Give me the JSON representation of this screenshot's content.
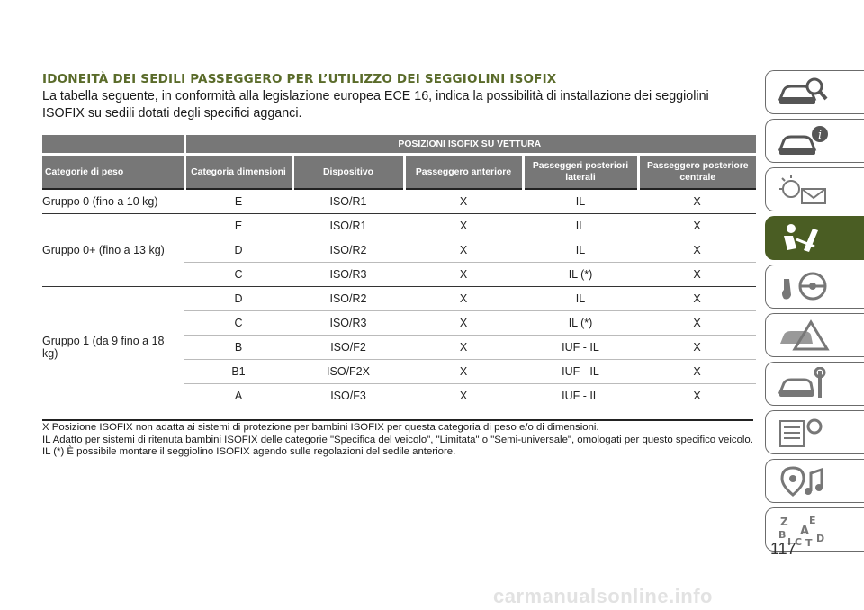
{
  "heading": "IDONEITÀ DEI SEDILI PASSEGGERO PER L’UTILIZZO DEI SEGGIOLINI ISOFIX",
  "intro": "La tabella seguente, in conformità alla legislazione europea ECE 16, indica la possibilità di installazione dei seggiolini ISOFIX su sedili dotati degli specifici agganci.",
  "table": {
    "group_header": "POSIZIONI ISOFIX SU VETTURA",
    "columns": [
      "Categorie di peso",
      "Categoria dimensioni",
      "Dispositivo",
      "Passeggero anteriore",
      "Passeggeri posteriori laterali",
      "Passeggero posteriore centrale"
    ],
    "groups": [
      {
        "label": "Gruppo 0 (fino a 10 kg)",
        "rows": [
          [
            "E",
            "ISO/R1",
            "X",
            "IL",
            "X"
          ]
        ]
      },
      {
        "label": "Gruppo 0+ (fino a 13 kg)",
        "rows": [
          [
            "E",
            "ISO/R1",
            "X",
            "IL",
            "X"
          ],
          [
            "D",
            "ISO/R2",
            "X",
            "IL",
            "X"
          ],
          [
            "C",
            "ISO/R3",
            "X",
            "IL (*)",
            "X"
          ]
        ]
      },
      {
        "label": "Gruppo 1 (da 9 fino a 18 kg)",
        "rows": [
          [
            "D",
            "ISO/R2",
            "X",
            "IL",
            "X"
          ],
          [
            "C",
            "ISO/R3",
            "X",
            "IL (*)",
            "X"
          ],
          [
            "B",
            "ISO/F2",
            "X",
            "IUF - IL",
            "X"
          ],
          [
            "B1",
            "ISO/F2X",
            "X",
            "IUF - IL",
            "X"
          ],
          [
            "A",
            "ISO/F3",
            "X",
            "IUF - IL",
            "X"
          ]
        ]
      }
    ]
  },
  "notes": [
    "X Posizione ISOFIX non adatta ai sistemi di protezione per bambini ISOFIX per questa categoria di peso e/o di dimensioni.",
    "IL Adatto per sistemi di ritenuta bambini ISOFIX delle categorie \"Specifica del veicolo\", \"Limitata\" o \"Semi-universale\", omologati per questo specifico veicolo.",
    "IL (*) È possibile montare il seggiolino ISOFIX agendo sulle regolazioni del sedile anteriore."
  ],
  "sidebar_tabs": [
    {
      "icon": "car-search-icon",
      "active": false
    },
    {
      "icon": "car-info-icon",
      "active": false
    },
    {
      "icon": "warning-lights-icon",
      "active": false
    },
    {
      "icon": "seat-safety-icon",
      "active": true
    },
    {
      "icon": "steering-wheel-icon",
      "active": false
    },
    {
      "icon": "car-emergency-icon",
      "active": false
    },
    {
      "icon": "car-service-icon",
      "active": false
    },
    {
      "icon": "technical-data-icon",
      "active": false
    },
    {
      "icon": "multimedia-icon",
      "active": false
    },
    {
      "icon": "alphabetical-index-icon",
      "active": false
    }
  ],
  "page_number": "117",
  "watermark": "carmanualsonline.info",
  "colors": {
    "accent": "#4a5d23",
    "heading": "#5a6b2a",
    "table_header": "#777777"
  }
}
